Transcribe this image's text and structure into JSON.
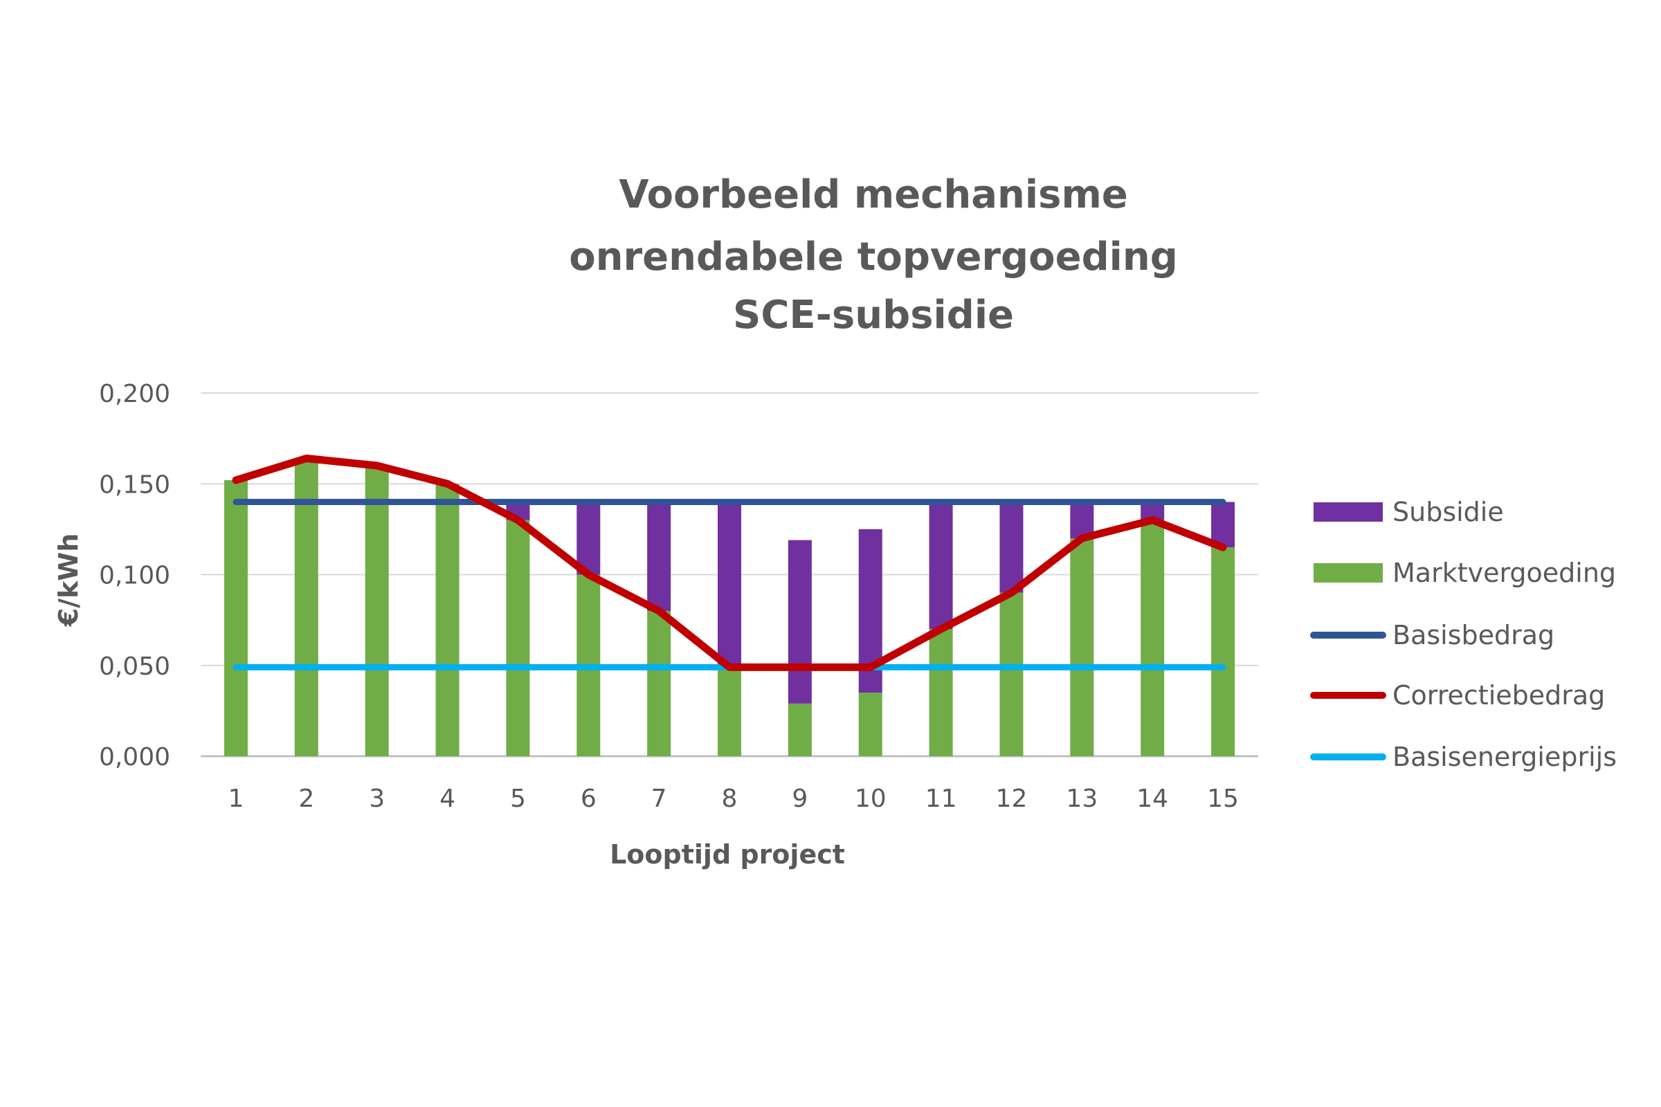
{
  "chart_data": {
    "type": "bar",
    "title_lines": [
      "Voorbeeld mechanisme",
      "onrendabele topvergoeding",
      "SCE-subsidie"
    ],
    "xlabel": "Looptijd project",
    "ylabel": "€/kWh",
    "categories": [
      "1",
      "2",
      "3",
      "4",
      "5",
      "6",
      "7",
      "8",
      "9",
      "10",
      "11",
      "12",
      "13",
      "14",
      "15"
    ],
    "yticks": [
      "0,000",
      "0,050",
      "0,100",
      "0,150",
      "0,200"
    ],
    "ylim": [
      0,
      0.2
    ],
    "grid": true,
    "legend_position": "right",
    "series": [
      {
        "name": "Subsidie",
        "kind": "stacked-bar",
        "color": "#7030a0",
        "values": [
          0,
          0,
          0,
          0,
          0.01,
          0.04,
          0.06,
          0.09,
          0.09,
          0.09,
          0.07,
          0.05,
          0.02,
          0.01,
          0.025
        ]
      },
      {
        "name": "Marktvergoeding",
        "kind": "stacked-bar",
        "color": "#70ad47",
        "values": [
          0.152,
          0.163,
          0.16,
          0.15,
          0.13,
          0.1,
          0.08,
          0.05,
          0.029,
          0.035,
          0.07,
          0.09,
          0.12,
          0.13,
          0.115
        ]
      },
      {
        "name": "Basisbedrag",
        "kind": "line",
        "color": "#2f5597",
        "values": [
          0.14,
          0.14,
          0.14,
          0.14,
          0.14,
          0.14,
          0.14,
          0.14,
          0.14,
          0.14,
          0.14,
          0.14,
          0.14,
          0.14,
          0.14
        ]
      },
      {
        "name": "Correctiebedrag",
        "kind": "line",
        "color": "#c00000",
        "values": [
          0.152,
          0.164,
          0.16,
          0.15,
          0.13,
          0.1,
          0.08,
          0.049,
          0.049,
          0.049,
          0.07,
          0.09,
          0.12,
          0.13,
          0.115
        ]
      },
      {
        "name": "Basisenergieprijs",
        "kind": "line",
        "color": "#00b0f0",
        "values": [
          0.049,
          0.049,
          0.049,
          0.049,
          0.049,
          0.049,
          0.049,
          0.049,
          0.049,
          0.049,
          0.049,
          0.049,
          0.049,
          0.049,
          0.049
        ]
      }
    ]
  }
}
